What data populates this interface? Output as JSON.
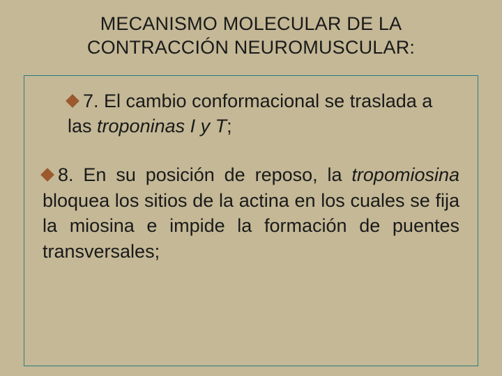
{
  "slide": {
    "background_color": "#c4b896",
    "box_border_color": "#2a7d7d",
    "bullet_color": "#9b5a2e",
    "text_color": "#1a1a1a",
    "title_line1": "MECANISMO MOLECULAR DE LA",
    "title_line2": "CONTRACCIÓN NEUROMUSCULAR:",
    "title_fontsize": 27,
    "body_fontsize": 27,
    "items": [
      {
        "prefix": "7. ",
        "text_a": "El cambio conformacional se traslada a las ",
        "italic": "troponinas I y T",
        "text_b": ";"
      },
      {
        "prefix": "8. ",
        "text_a": "En su posición de reposo, la ",
        "italic": "tropomiosina",
        "text_b": " bloquea los sitios de la actina en los cuales se fija la miosina e impide la formación de puentes transversales;"
      }
    ]
  }
}
